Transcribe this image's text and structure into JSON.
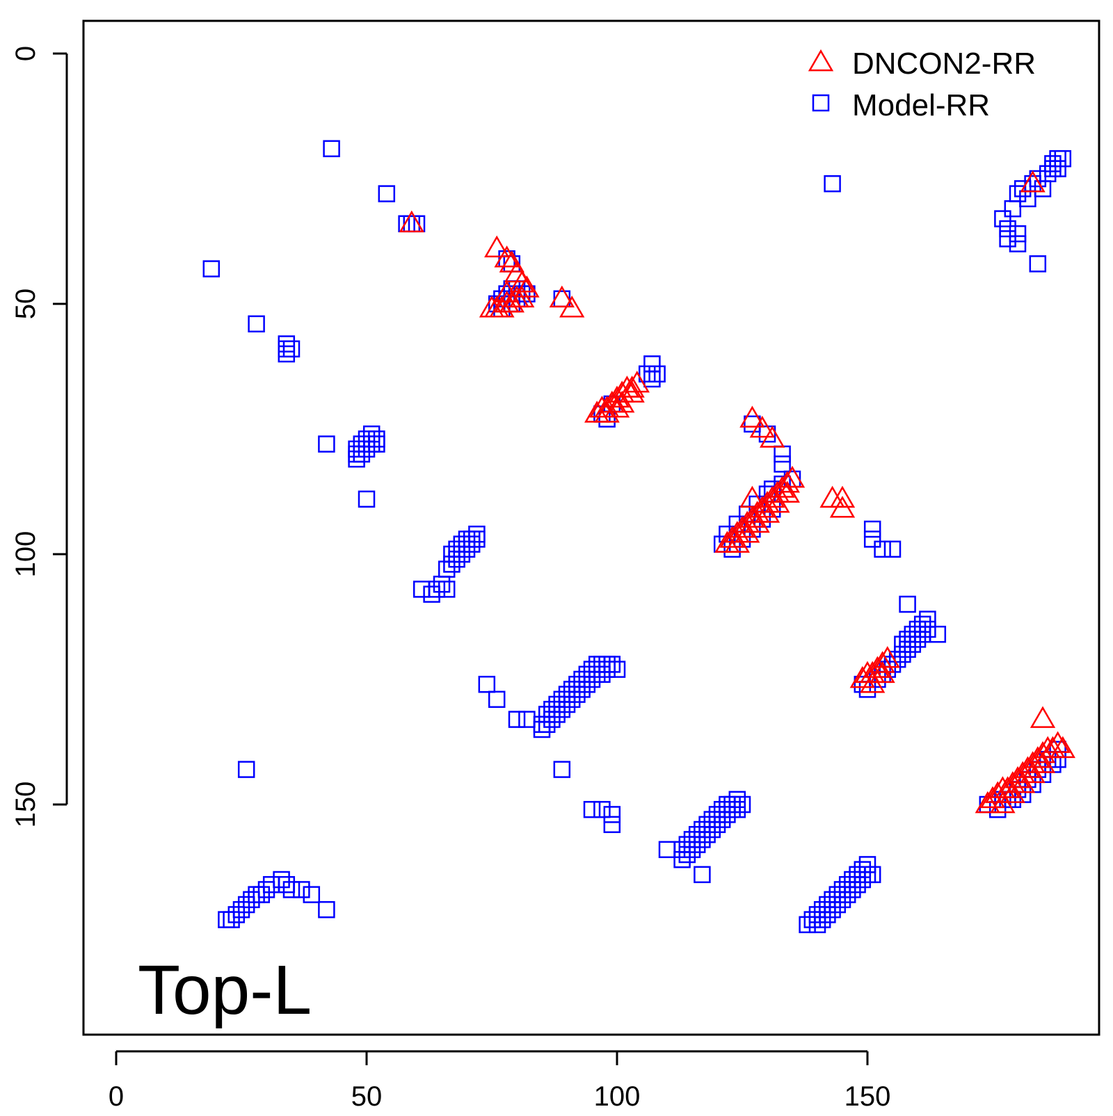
{
  "chart_data": {
    "type": "scatter",
    "title": "",
    "xlabel": "",
    "ylabel": "",
    "xlim": [
      -7,
      196
    ],
    "ylim": [
      -7,
      196
    ],
    "y_inverted": true,
    "x_ticks": [
      0,
      50,
      100,
      150
    ],
    "y_ticks": [
      0,
      50,
      100,
      150
    ],
    "grid": false,
    "legend_position": "top-right",
    "annotation": "Top-L",
    "series": [
      {
        "name": "DNCON2-RR",
        "marker": "triangle",
        "color": "#ff0000",
        "points": [
          [
            59,
            34
          ],
          [
            76,
            39
          ],
          [
            78,
            41
          ],
          [
            79,
            42
          ],
          [
            80,
            44
          ],
          [
            81,
            46
          ],
          [
            82,
            47
          ],
          [
            81,
            49
          ],
          [
            80,
            49
          ],
          [
            79,
            50
          ],
          [
            78,
            50
          ],
          [
            77,
            51
          ],
          [
            76,
            51
          ],
          [
            75,
            51
          ],
          [
            78,
            48
          ],
          [
            89,
            49
          ],
          [
            91,
            51
          ],
          [
            96,
            72
          ],
          [
            97,
            71
          ],
          [
            98,
            71
          ],
          [
            99,
            70
          ],
          [
            100,
            69
          ],
          [
            101,
            68
          ],
          [
            102,
            67
          ],
          [
            103,
            67
          ],
          [
            104,
            66
          ],
          [
            98,
            72
          ],
          [
            100,
            71
          ],
          [
            101,
            70
          ],
          [
            103,
            68
          ],
          [
            127,
            73
          ],
          [
            129,
            75
          ],
          [
            131,
            77
          ],
          [
            122,
            98
          ],
          [
            123,
            97
          ],
          [
            124,
            96
          ],
          [
            125,
            95
          ],
          [
            126,
            94
          ],
          [
            127,
            93
          ],
          [
            128,
            92
          ],
          [
            129,
            91
          ],
          [
            130,
            90
          ],
          [
            131,
            89
          ],
          [
            132,
            88
          ],
          [
            133,
            87
          ],
          [
            134,
            86
          ],
          [
            135,
            85
          ],
          [
            124,
            98
          ],
          [
            126,
            96
          ],
          [
            128,
            94
          ],
          [
            130,
            92
          ],
          [
            132,
            90
          ],
          [
            134,
            88
          ],
          [
            127,
            89
          ],
          [
            143,
            89
          ],
          [
            145,
            89
          ],
          [
            145,
            91
          ],
          [
            149,
            125
          ],
          [
            150,
            124
          ],
          [
            151,
            124
          ],
          [
            152,
            123
          ],
          [
            153,
            122
          ],
          [
            154,
            121
          ],
          [
            151,
            126
          ],
          [
            153,
            124
          ],
          [
            183,
            26
          ],
          [
            185,
            133
          ],
          [
            174,
            150
          ],
          [
            175,
            149
          ],
          [
            176,
            148
          ],
          [
            177,
            147
          ],
          [
            178,
            147
          ],
          [
            179,
            146
          ],
          [
            180,
            145
          ],
          [
            181,
            144
          ],
          [
            182,
            143
          ],
          [
            183,
            142
          ],
          [
            184,
            141
          ],
          [
            185,
            140
          ],
          [
            186,
            139
          ],
          [
            187,
            139
          ],
          [
            188,
            138
          ],
          [
            189,
            139
          ],
          [
            177,
            150
          ],
          [
            179,
            148
          ],
          [
            181,
            146
          ],
          [
            183,
            144
          ],
          [
            185,
            142
          ]
        ]
      },
      {
        "name": "Model-RR",
        "marker": "square",
        "color": "#0000ff",
        "points": [
          [
            43,
            19
          ],
          [
            54,
            28
          ],
          [
            58,
            34
          ],
          [
            59,
            34
          ],
          [
            60,
            34
          ],
          [
            19,
            43
          ],
          [
            28,
            54
          ],
          [
            34,
            58
          ],
          [
            34,
            59
          ],
          [
            35,
            59
          ],
          [
            34,
            60
          ],
          [
            76,
            50
          ],
          [
            77,
            49
          ],
          [
            78,
            48
          ],
          [
            79,
            47
          ],
          [
            80,
            47
          ],
          [
            81,
            48
          ],
          [
            82,
            48
          ],
          [
            77,
            51
          ],
          [
            79,
            50
          ],
          [
            80,
            49
          ],
          [
            78,
            41
          ],
          [
            79,
            42
          ],
          [
            89,
            49
          ],
          [
            42,
            78
          ],
          [
            48,
            79
          ],
          [
            48,
            80
          ],
          [
            48,
            81
          ],
          [
            49,
            78
          ],
          [
            49,
            80
          ],
          [
            50,
            77
          ],
          [
            50,
            79
          ],
          [
            51,
            76
          ],
          [
            51,
            78
          ],
          [
            52,
            77
          ],
          [
            52,
            78
          ],
          [
            50,
            89
          ],
          [
            107,
            62
          ],
          [
            106,
            64
          ],
          [
            107,
            65
          ],
          [
            108,
            64
          ],
          [
            99,
            70
          ],
          [
            97,
            72
          ],
          [
            98,
            73
          ],
          [
            61,
            107
          ],
          [
            63,
            108
          ],
          [
            64,
            107
          ],
          [
            65,
            106
          ],
          [
            66,
            103
          ],
          [
            66,
            107
          ],
          [
            67,
            100
          ],
          [
            67,
            102
          ],
          [
            68,
            99
          ],
          [
            68,
            101
          ],
          [
            69,
            98
          ],
          [
            69,
            100
          ],
          [
            70,
            97
          ],
          [
            70,
            99
          ],
          [
            71,
            97
          ],
          [
            71,
            98
          ],
          [
            72,
            96
          ],
          [
            72,
            97
          ],
          [
            74,
            126
          ],
          [
            76,
            129
          ],
          [
            80,
            133
          ],
          [
            82,
            133
          ],
          [
            85,
            134
          ],
          [
            85,
            135
          ],
          [
            86,
            132
          ],
          [
            86,
            134
          ],
          [
            87,
            131
          ],
          [
            87,
            133
          ],
          [
            88,
            130
          ],
          [
            88,
            132
          ],
          [
            89,
            129
          ],
          [
            89,
            131
          ],
          [
            90,
            128
          ],
          [
            90,
            130
          ],
          [
            91,
            127
          ],
          [
            91,
            129
          ],
          [
            92,
            126
          ],
          [
            92,
            128
          ],
          [
            93,
            125
          ],
          [
            93,
            127
          ],
          [
            94,
            124
          ],
          [
            94,
            126
          ],
          [
            95,
            123
          ],
          [
            95,
            125
          ],
          [
            96,
            122
          ],
          [
            96,
            124
          ],
          [
            97,
            122
          ],
          [
            97,
            124
          ],
          [
            98,
            122
          ],
          [
            98,
            123
          ],
          [
            99,
            122
          ],
          [
            100,
            123
          ],
          [
            26,
            143
          ],
          [
            89,
            143
          ],
          [
            95,
            151
          ],
          [
            97,
            151
          ],
          [
            99,
            152
          ],
          [
            99,
            154
          ],
          [
            110,
            159
          ],
          [
            113,
            159
          ],
          [
            113,
            161
          ],
          [
            114,
            158
          ],
          [
            114,
            160
          ],
          [
            115,
            157
          ],
          [
            115,
            159
          ],
          [
            116,
            156
          ],
          [
            116,
            158
          ],
          [
            117,
            155
          ],
          [
            117,
            157
          ],
          [
            117,
            164
          ],
          [
            118,
            154
          ],
          [
            118,
            156
          ],
          [
            119,
            153
          ],
          [
            119,
            155
          ],
          [
            120,
            152
          ],
          [
            120,
            154
          ],
          [
            121,
            151
          ],
          [
            121,
            153
          ],
          [
            122,
            150
          ],
          [
            122,
            152
          ],
          [
            123,
            150
          ],
          [
            123,
            151
          ],
          [
            124,
            149
          ],
          [
            124,
            151
          ],
          [
            125,
            150
          ],
          [
            22,
            173
          ],
          [
            23,
            173
          ],
          [
            24,
            172
          ],
          [
            25,
            171
          ],
          [
            26,
            170
          ],
          [
            27,
            169
          ],
          [
            28,
            168
          ],
          [
            29,
            168
          ],
          [
            30,
            167
          ],
          [
            31,
            166
          ],
          [
            33,
            165
          ],
          [
            34,
            166
          ],
          [
            35,
            167
          ],
          [
            37,
            167
          ],
          [
            39,
            168
          ],
          [
            42,
            171
          ],
          [
            138,
            174
          ],
          [
            139,
            173
          ],
          [
            140,
            172
          ],
          [
            140,
            174
          ],
          [
            141,
            171
          ],
          [
            141,
            173
          ],
          [
            142,
            170
          ],
          [
            142,
            172
          ],
          [
            143,
            169
          ],
          [
            143,
            171
          ],
          [
            144,
            168
          ],
          [
            144,
            170
          ],
          [
            145,
            167
          ],
          [
            145,
            169
          ],
          [
            146,
            166
          ],
          [
            146,
            168
          ],
          [
            147,
            165
          ],
          [
            147,
            167
          ],
          [
            148,
            164
          ],
          [
            148,
            166
          ],
          [
            149,
            163
          ],
          [
            149,
            165
          ],
          [
            150,
            162
          ],
          [
            150,
            164
          ],
          [
            151,
            164
          ],
          [
            127,
            74
          ],
          [
            130,
            76
          ],
          [
            133,
            80
          ],
          [
            133,
            82
          ],
          [
            135,
            85
          ],
          [
            133,
            86
          ],
          [
            131,
            87
          ],
          [
            130,
            88
          ],
          [
            128,
            90
          ],
          [
            126,
            92
          ],
          [
            124,
            94
          ],
          [
            122,
            96
          ],
          [
            121,
            98
          ],
          [
            123,
            99
          ],
          [
            125,
            97
          ],
          [
            127,
            95
          ],
          [
            129,
            93
          ],
          [
            131,
            91
          ],
          [
            143,
            26
          ],
          [
            151,
            95
          ],
          [
            151,
            97
          ],
          [
            153,
            99
          ],
          [
            155,
            99
          ],
          [
            149,
            126
          ],
          [
            150,
            127
          ],
          [
            152,
            125
          ],
          [
            153,
            124
          ],
          [
            154,
            123
          ],
          [
            155,
            122
          ],
          [
            156,
            121
          ],
          [
            157,
            120
          ],
          [
            157,
            118
          ],
          [
            158,
            119
          ],
          [
            158,
            117
          ],
          [
            159,
            116
          ],
          [
            159,
            118
          ],
          [
            160,
            115
          ],
          [
            160,
            117
          ],
          [
            161,
            114
          ],
          [
            161,
            116
          ],
          [
            162,
            113
          ],
          [
            164,
            116
          ],
          [
            158,
            110
          ],
          [
            162,
            115
          ],
          [
            177,
            33
          ],
          [
            178,
            35
          ],
          [
            178,
            37
          ],
          [
            180,
            36
          ],
          [
            179,
            31
          ],
          [
            180,
            28
          ],
          [
            181,
            27
          ],
          [
            182,
            29
          ],
          [
            183,
            26
          ],
          [
            184,
            25
          ],
          [
            185,
            27
          ],
          [
            186,
            24
          ],
          [
            187,
            22
          ],
          [
            187,
            23
          ],
          [
            188,
            21
          ],
          [
            188,
            23
          ],
          [
            189,
            21
          ],
          [
            180,
            38
          ],
          [
            184,
            42
          ],
          [
            174,
            150
          ],
          [
            176,
            151
          ],
          [
            178,
            149
          ],
          [
            180,
            147
          ],
          [
            182,
            145
          ],
          [
            184,
            143
          ],
          [
            186,
            141
          ],
          [
            188,
            139
          ],
          [
            188,
            141
          ],
          [
            187,
            142
          ],
          [
            185,
            144
          ],
          [
            183,
            146
          ],
          [
            181,
            148
          ],
          [
            179,
            149
          ],
          [
            177,
            149
          ]
        ]
      }
    ]
  }
}
